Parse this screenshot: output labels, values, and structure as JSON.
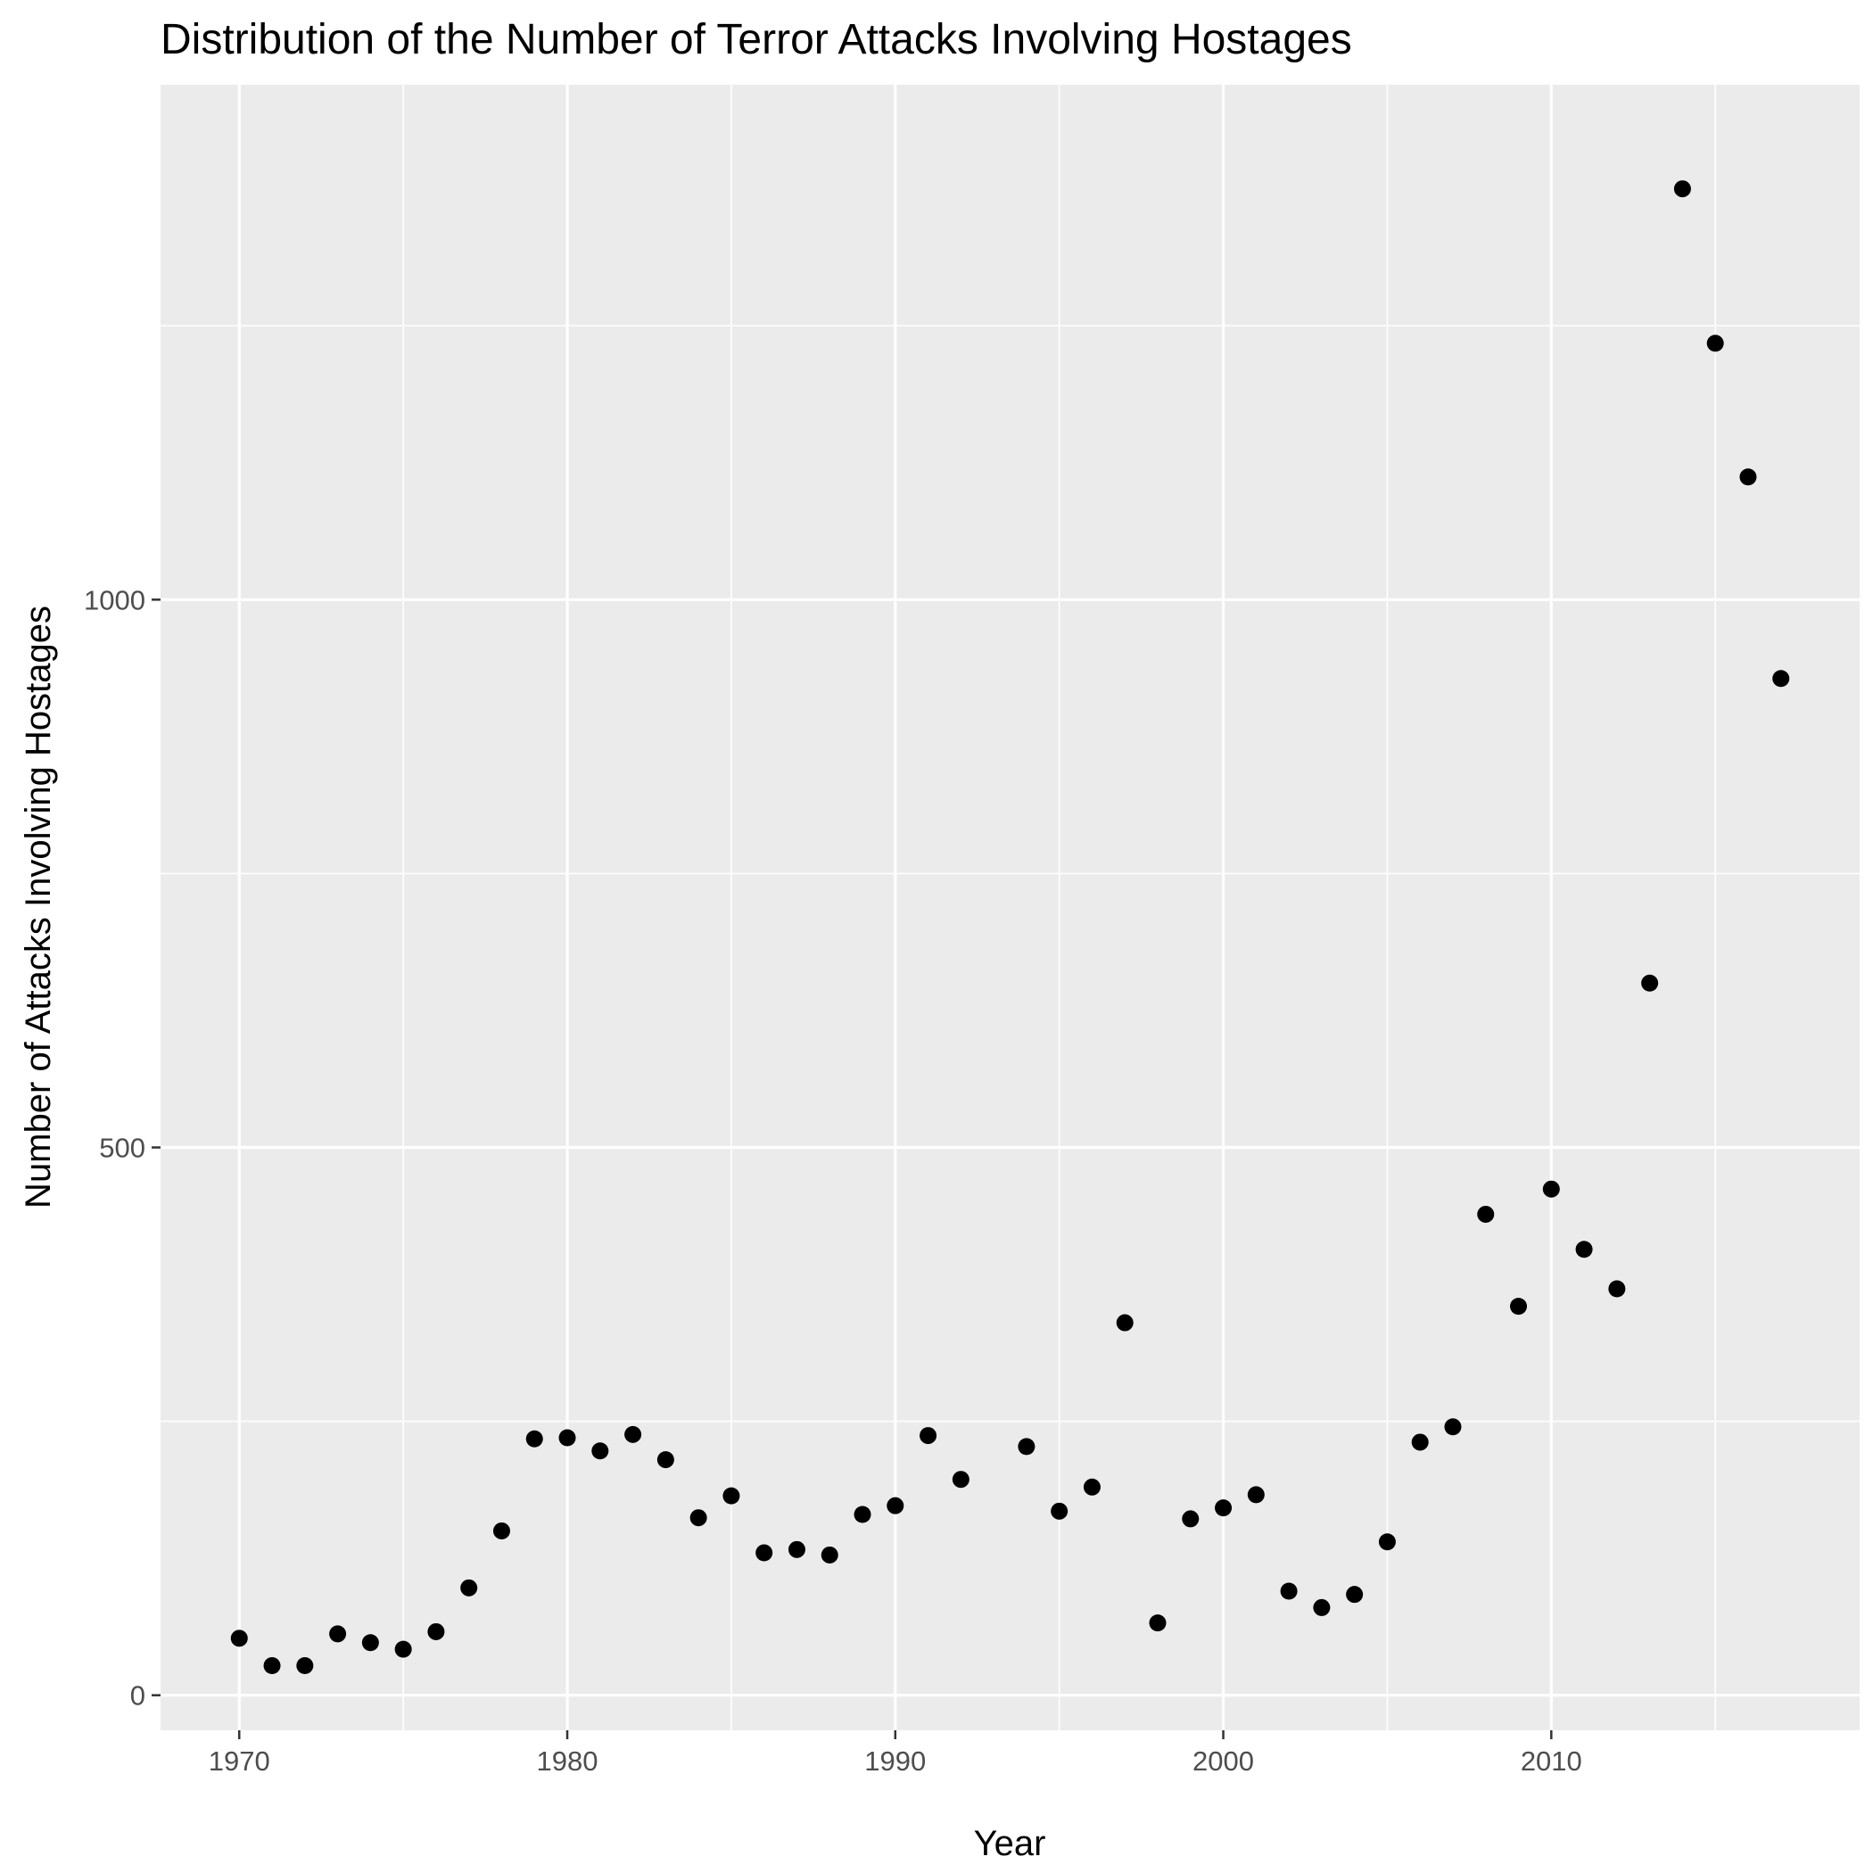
{
  "chart_data": {
    "type": "scatter",
    "title": "Distribution of the Number of Terror Attacks Involving Hostages",
    "xlabel": "Year",
    "ylabel": "Number of Attacks Involving Hostages",
    "xlim": [
      1967.6,
      2019.4
    ],
    "ylim": [
      -32,
      1470
    ],
    "x_major_ticks": [
      1970,
      1980,
      1990,
      2000,
      2010
    ],
    "x_minor_ticks": [
      1975,
      1985,
      1995,
      2005,
      2015
    ],
    "y_major_ticks": [
      0,
      500,
      1000
    ],
    "y_minor_ticks": [
      250,
      750,
      1250
    ],
    "grid": true,
    "legend": "none",
    "colors": {
      "panel": "#ebebeb",
      "grid": "#ffffff",
      "point": "#000000",
      "tick_text": "#4d4d4d"
    },
    "x": [
      1970,
      1971,
      1972,
      1973,
      1974,
      1975,
      1976,
      1977,
      1978,
      1979,
      1980,
      1981,
      1982,
      1983,
      1984,
      1985,
      1986,
      1987,
      1988,
      1989,
      1990,
      1991,
      1992,
      1994,
      1995,
      1996,
      1997,
      1998,
      1999,
      2000,
      2001,
      2002,
      2003,
      2004,
      2005,
      2006,
      2007,
      2008,
      2009,
      2010,
      2011,
      2012,
      2013,
      2014,
      2015,
      2016,
      2017
    ],
    "y": [
      52,
      27,
      27,
      56,
      48,
      42,
      58,
      98,
      150,
      234,
      235,
      223,
      238,
      215,
      162,
      182,
      130,
      133,
      128,
      165,
      173,
      237,
      197,
      227,
      168,
      190,
      340,
      66,
      161,
      171,
      183,
      95,
      80,
      92,
      140,
      231,
      245,
      439,
      355,
      462,
      407,
      371,
      650,
      1375,
      1234,
      1112,
      928
    ]
  }
}
